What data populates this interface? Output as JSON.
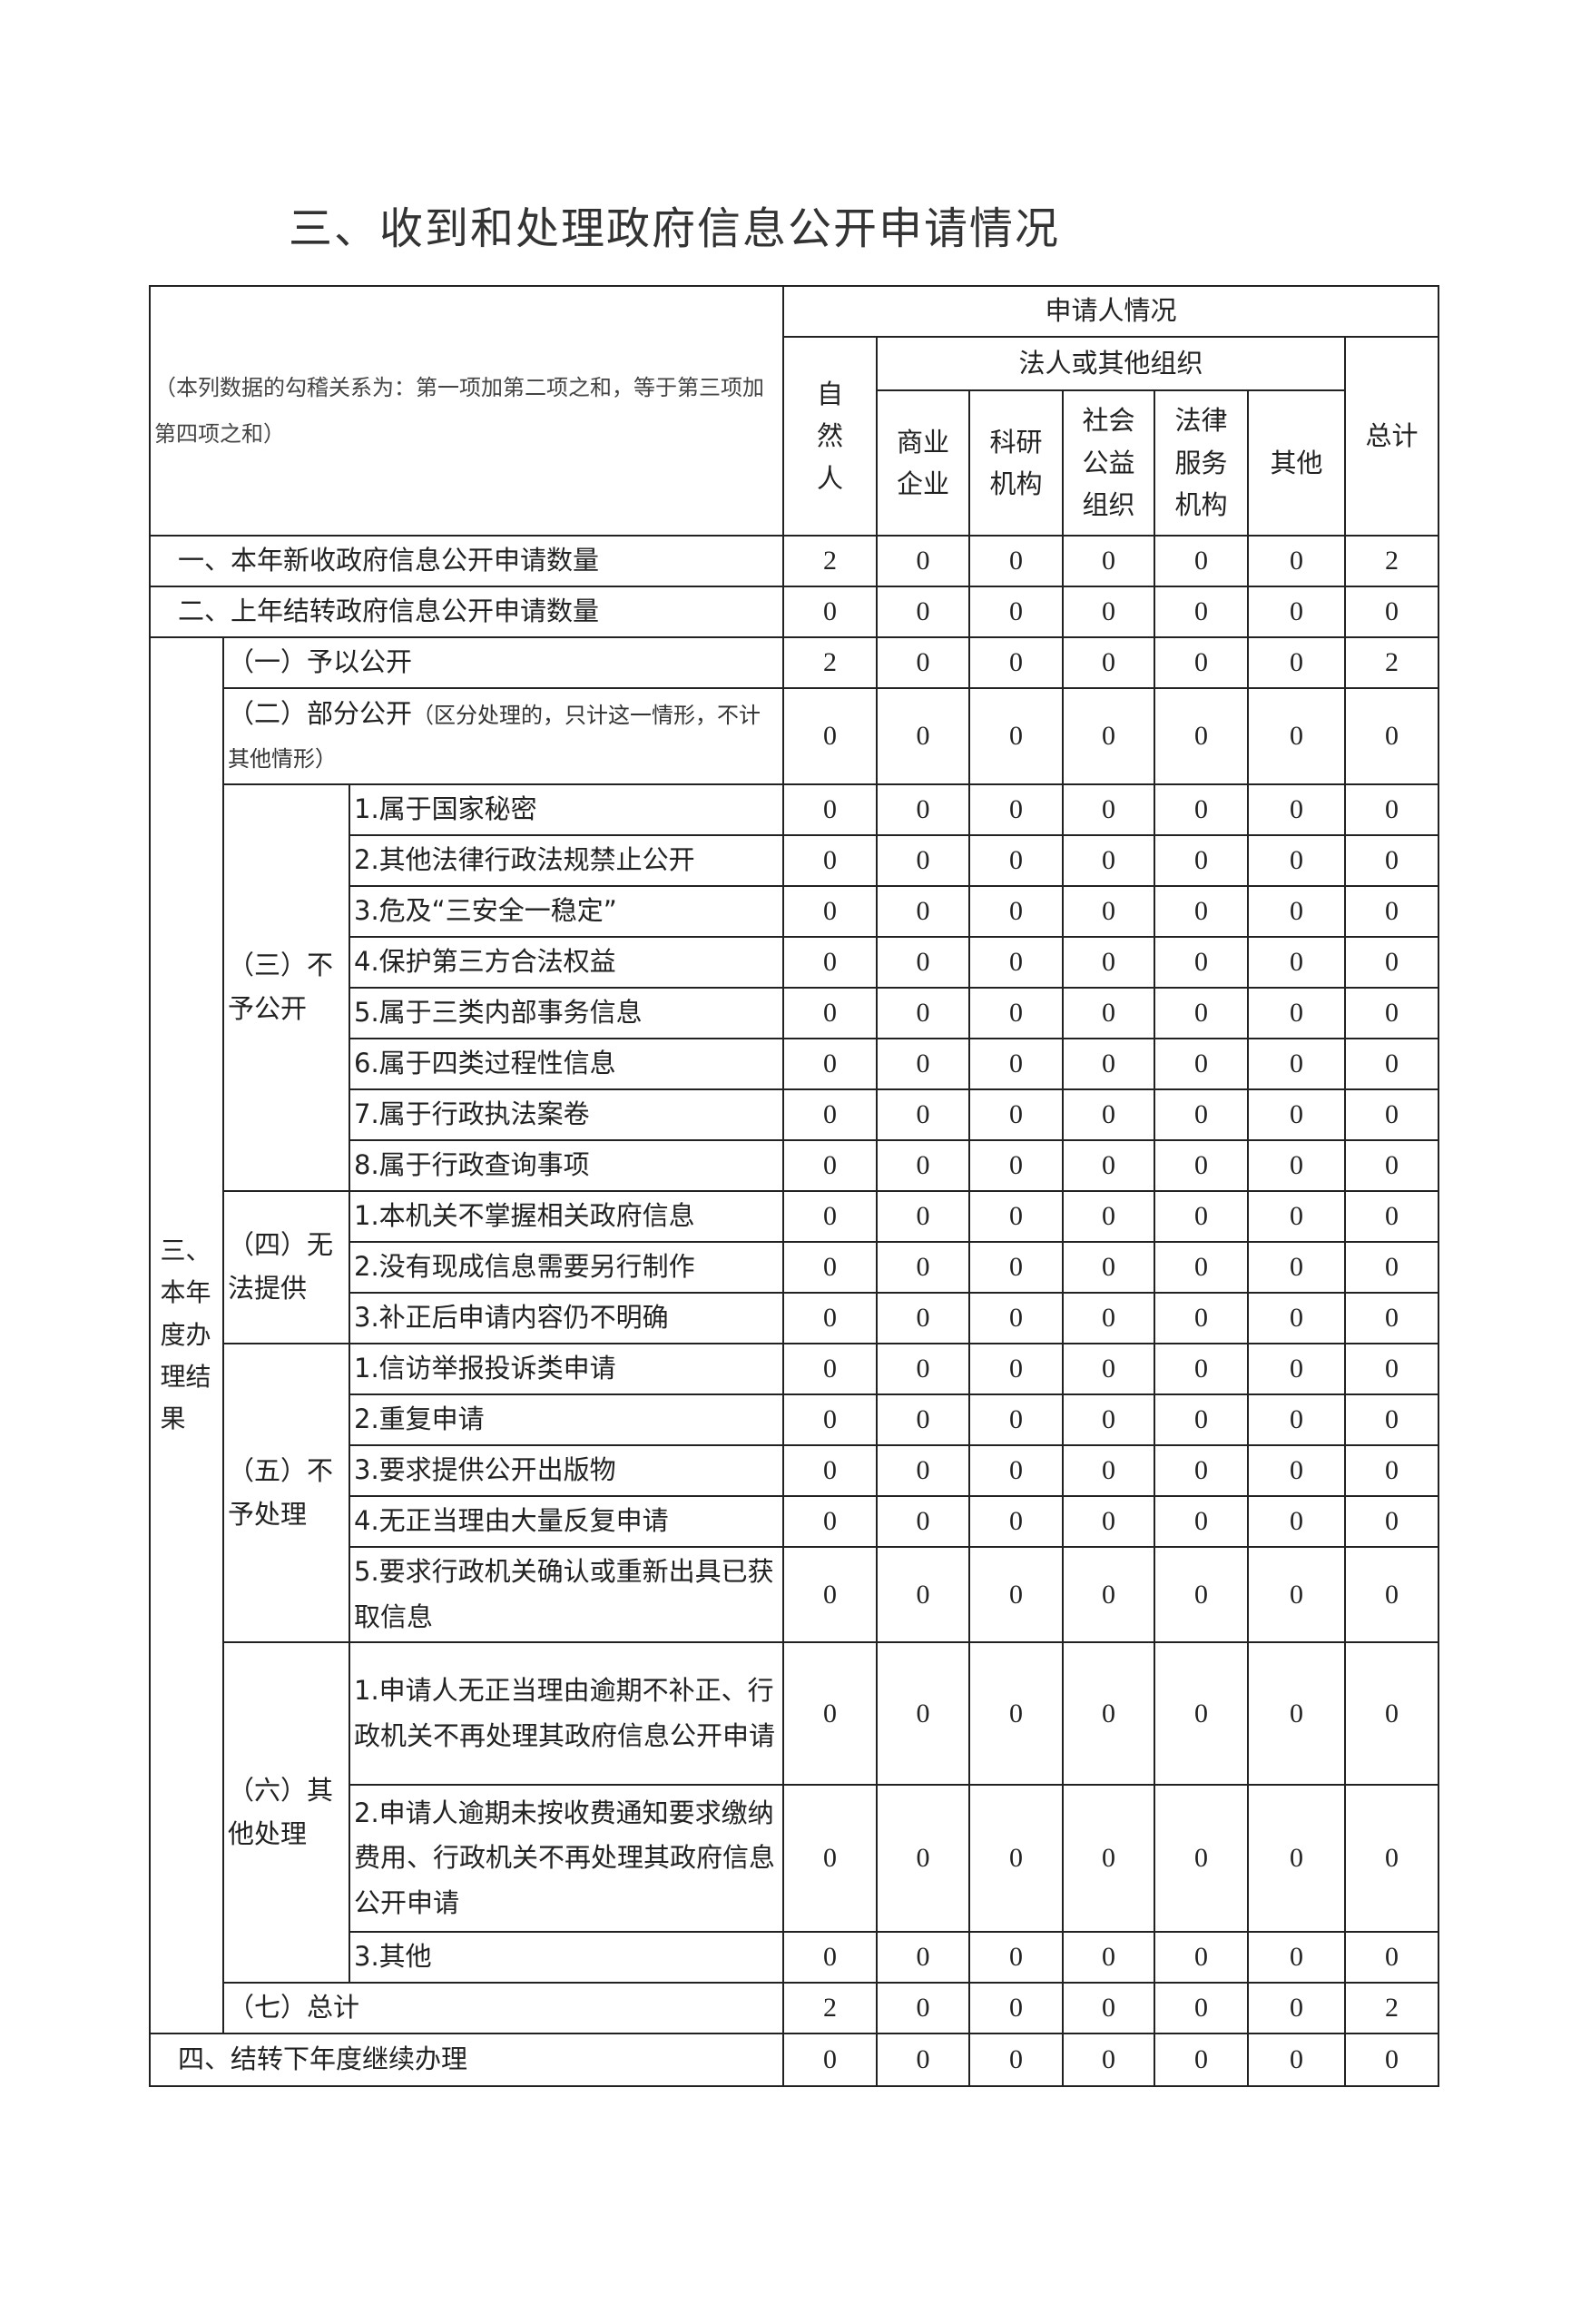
{
  "title": "三、收到和处理政府信息公开申请情况",
  "header": {
    "note": "（本列数据的勾稽关系为：第一项加第二项之和，等于第三项加第四项之和）",
    "applicant": "申请人情况",
    "natural_person": "自然人",
    "legal_org": "法人或其他组织",
    "columns": [
      "商业企业",
      "科研机构",
      "社会公益组织",
      "法律服务机构",
      "其他"
    ],
    "total": "总计"
  },
  "rows": {
    "new": {
      "label": "一、本年新收政府信息公开申请数量",
      "values": [
        2,
        0,
        0,
        0,
        0,
        0,
        2
      ]
    },
    "carried": {
      "label": "二、上年结转政府信息公开申请数量",
      "values": [
        0,
        0,
        0,
        0,
        0,
        0,
        0
      ]
    },
    "results": {
      "label": "三、本年度办理结果",
      "groups": [
        {
          "label": "（一）予以公开",
          "values": [
            2,
            0,
            0,
            0,
            0,
            0,
            2
          ]
        },
        {
          "label": "（二）部分公开",
          "note": "（区分处理的，只计这一情形，不计其他情形）",
          "values": [
            0,
            0,
            0,
            0,
            0,
            0,
            0
          ]
        },
        {
          "label": "（三）不予公开",
          "items": [
            {
              "label": "1.属于国家秘密",
              "values": [
                0,
                0,
                0,
                0,
                0,
                0,
                0
              ]
            },
            {
              "label": "2.其他法律行政法规禁止公开",
              "values": [
                0,
                0,
                0,
                0,
                0,
                0,
                0
              ]
            },
            {
              "label": "3.危及“三安全一稳定”",
              "values": [
                0,
                0,
                0,
                0,
                0,
                0,
                0
              ]
            },
            {
              "label": "4.保护第三方合法权益",
              "values": [
                0,
                0,
                0,
                0,
                0,
                0,
                0
              ]
            },
            {
              "label": "5.属于三类内部事务信息",
              "values": [
                0,
                0,
                0,
                0,
                0,
                0,
                0
              ]
            },
            {
              "label": "6.属于四类过程性信息",
              "values": [
                0,
                0,
                0,
                0,
                0,
                0,
                0
              ]
            },
            {
              "label": "7.属于行政执法案卷",
              "values": [
                0,
                0,
                0,
                0,
                0,
                0,
                0
              ]
            },
            {
              "label": "8.属于行政查询事项",
              "values": [
                0,
                0,
                0,
                0,
                0,
                0,
                0
              ]
            }
          ]
        },
        {
          "label": "（四）无法提供",
          "items": [
            {
              "label": "1.本机关不掌握相关政府信息",
              "values": [
                0,
                0,
                0,
                0,
                0,
                0,
                0
              ]
            },
            {
              "label": "2.没有现成信息需要另行制作",
              "values": [
                0,
                0,
                0,
                0,
                0,
                0,
                0
              ]
            },
            {
              "label": "3.补正后申请内容仍不明确",
              "values": [
                0,
                0,
                0,
                0,
                0,
                0,
                0
              ]
            }
          ]
        },
        {
          "label": "（五）不予处理",
          "items": [
            {
              "label": "1.信访举报投诉类申请",
              "values": [
                0,
                0,
                0,
                0,
                0,
                0,
                0
              ]
            },
            {
              "label": "2.重复申请",
              "values": [
                0,
                0,
                0,
                0,
                0,
                0,
                0
              ]
            },
            {
              "label": "3.要求提供公开出版物",
              "values": [
                0,
                0,
                0,
                0,
                0,
                0,
                0
              ]
            },
            {
              "label": "4.无正当理由大量反复申请",
              "values": [
                0,
                0,
                0,
                0,
                0,
                0,
                0
              ]
            },
            {
              "label": "5.要求行政机关确认或重新出具已获取信息",
              "values": [
                0,
                0,
                0,
                0,
                0,
                0,
                0
              ]
            }
          ]
        },
        {
          "label": "（六）其他处理",
          "items": [
            {
              "label": "1.申请人无正当理由逾期不补正、行政机关不再处理其政府信息公开申请",
              "values": [
                0,
                0,
                0,
                0,
                0,
                0,
                0
              ]
            },
            {
              "label": "2.申请人逾期未按收费通知要求缴纳费用、行政机关不再处理其政府信息公开申请",
              "values": [
                0,
                0,
                0,
                0,
                0,
                0,
                0
              ]
            },
            {
              "label": "3.其他",
              "values": [
                0,
                0,
                0,
                0,
                0,
                0,
                0
              ]
            }
          ]
        },
        {
          "label": "（七）总计",
          "values": [
            2,
            0,
            0,
            0,
            0,
            0,
            2
          ]
        }
      ]
    },
    "next_year": {
      "label": "四、结转下年度继续办理",
      "values": [
        0,
        0,
        0,
        0,
        0,
        0,
        0
      ]
    }
  }
}
